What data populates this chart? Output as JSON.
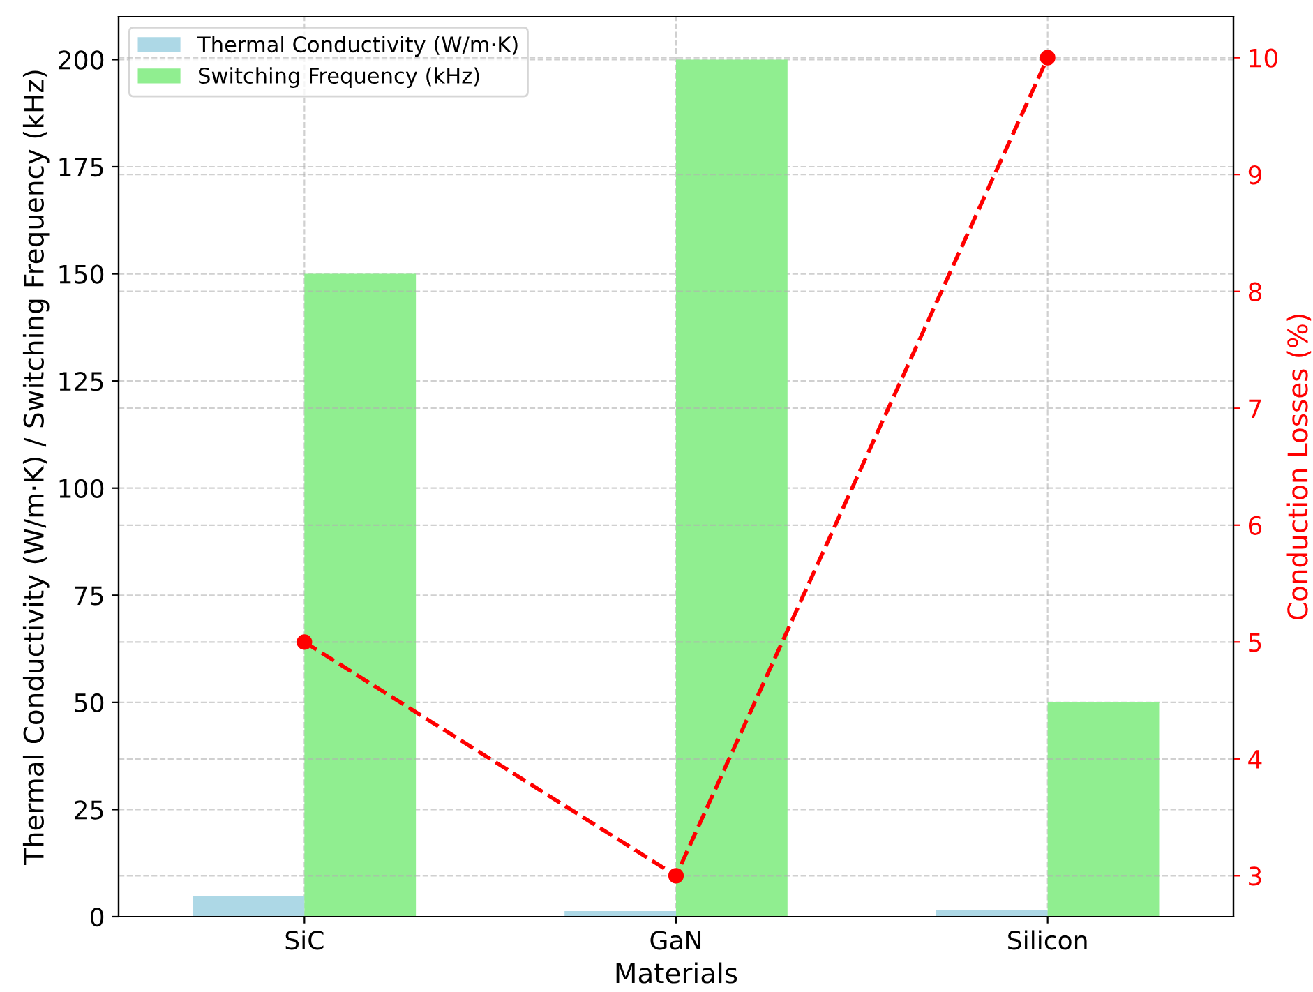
{
  "chart_data": {
    "type": "bar",
    "xlabel": "Materials",
    "ylabel": "Thermal Conductivity (W/m·K) / Switching Frequency (kHz)",
    "y2label": "Conduction Losses (%)",
    "categories": [
      "SiC",
      "GaN",
      "Silicon"
    ],
    "series": [
      {
        "name": "Thermal Conductivity (W/m·K)",
        "color": "#add8e6",
        "values": [
          4.9,
          1.3,
          1.5
        ]
      },
      {
        "name": "Switching Frequency (kHz)",
        "color": "#90ee90",
        "values": [
          150,
          200,
          50
        ]
      },
      {
        "type": "line",
        "axis": "y2",
        "color": "#ff0000",
        "values": [
          5,
          3,
          10
        ],
        "marker": "circle",
        "line_style": "dashed"
      }
    ],
    "ylim": [
      0,
      210
    ],
    "yticks": [
      0,
      25,
      50,
      75,
      100,
      125,
      150,
      175,
      200
    ],
    "y2lim": [
      2.65,
      10.35
    ],
    "y2ticks": [
      3,
      4,
      5,
      6,
      7,
      8,
      9,
      10
    ],
    "grid": true,
    "legend": "top left"
  }
}
